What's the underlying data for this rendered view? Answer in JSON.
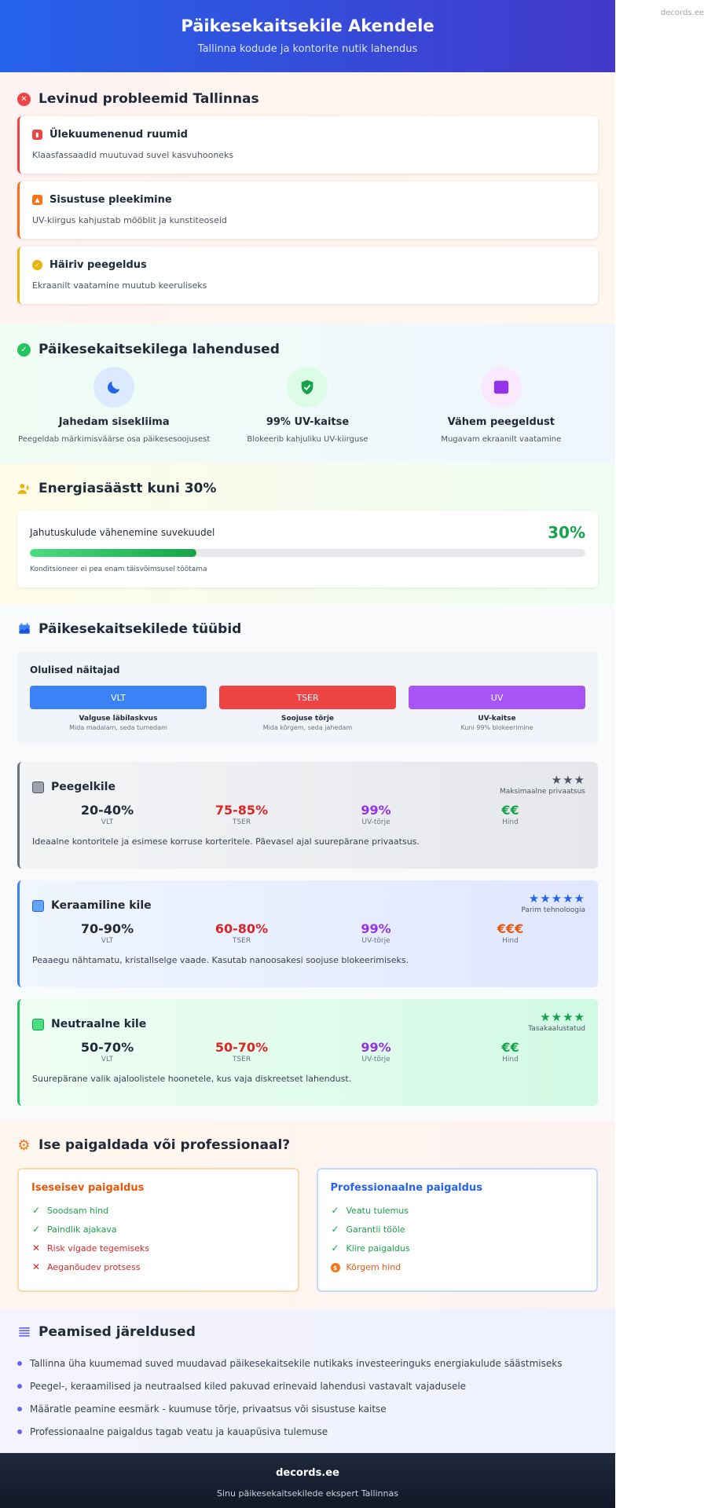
{
  "watermark": "decords.ee",
  "hero": {
    "title": "Päikesekaitsekile Akendele",
    "subtitle": "Tallinna kodude ja kontorite nutik lahendus"
  },
  "problems": {
    "title": "Levinud probleemid Tallinnas",
    "items": [
      {
        "title": "Ülekuumenenud ruumid",
        "desc": "Klaasfassaadid muutuvad suvel kasvuhooneks",
        "color": "#ef4444",
        "icon": "building-icon"
      },
      {
        "title": "Sisustuse pleekimine",
        "desc": "UV-kiirgus kahjustab mööblit ja kunstiteoseid",
        "color": "#f97316",
        "icon": "image-icon"
      },
      {
        "title": "Häiriv peegeldus",
        "desc": "Ekraanilt vaatamine muutub keeruliseks",
        "color": "#eab308",
        "icon": "glare-icon"
      }
    ]
  },
  "solutions": {
    "title": "Päikesekaitsekilega lahendused",
    "items": [
      {
        "title": "Jahedam sisekliima",
        "desc": "Peegeldab märkimisväärse osa päikesesoojusest",
        "icon": "moon-icon"
      },
      {
        "title": "99% UV-kaitse",
        "desc": "Blokeerib kahjuliku UV-kiirguse",
        "icon": "shield-check-icon"
      },
      {
        "title": "Vähem peegeldust",
        "desc": "Mugavam ekraanilt vaatamine",
        "icon": "screen-icon"
      }
    ]
  },
  "energy": {
    "title": "Energiasäästt kuni 30%",
    "label": "Jahutuskulude vähenemine suvekuudel",
    "value": "30%",
    "progress": 0.3,
    "note": "Konditsioneer ei pea enam täisvõimsusel töötama"
  },
  "types": {
    "title": "Päikesekaitsekilede tüübid",
    "metrics_title": "Olulised näitajad",
    "metrics": [
      {
        "label": "VLT",
        "name": "Valguse läbilaskvus",
        "desc": "Mida madalam, seda tumedam",
        "color": "#3b82f6"
      },
      {
        "label": "TSER",
        "name": "Soojuse tõrje",
        "desc": "Mida kõrgem, seda jahedam",
        "color": "#ef4444"
      },
      {
        "label": "UV",
        "name": "UV-kaitse",
        "desc": "Kuni 99% blokeerimine",
        "color": "#a855f7"
      }
    ],
    "films": [
      {
        "name": "Peegelkile",
        "stars": "★★★",
        "rating_label": "Maksimaalne privaatsus",
        "vlt": "20-40%",
        "tser": "75-85%",
        "uv": "99%",
        "price": "€€",
        "desc": "Ideaalne kontoritele ja esimese korruse korteritele. Päevasel ajal suurepärane privaatsus."
      },
      {
        "name": "Keraamiline kile",
        "stars": "★★★★★",
        "rating_label": "Parim tehnoloogia",
        "vlt": "70-90%",
        "tser": "60-80%",
        "uv": "99%",
        "price": "€€€",
        "desc": "Peaaegu nähtamatu, kristallselge vaade. Kasutab nanoosakesi soojuse blokeerimiseks."
      },
      {
        "name": "Neutraalne kile",
        "stars": "★★★★",
        "rating_label": "Tasakaalustatud",
        "vlt": "50-70%",
        "tser": "50-70%",
        "uv": "99%",
        "price": "€€",
        "desc": "Suurepärane valik ajaloolistele hoonetele, kus vaja diskreetset lahendust."
      }
    ],
    "stat_labels": {
      "vlt": "VLT",
      "tser": "TSER",
      "uv": "UV-tõrje",
      "price": "Hind"
    }
  },
  "install": {
    "title": "Ise paigaldada või professionaal?",
    "diy": {
      "title": "Iseseisev paigaldus",
      "items": [
        {
          "text": "Soodsam hind",
          "type": "pro"
        },
        {
          "text": "Paindlik ajakava",
          "type": "pro"
        },
        {
          "text": "Risk vigade tegemiseks",
          "type": "con"
        },
        {
          "text": "Aeganõudev protsess",
          "type": "con"
        }
      ]
    },
    "pro": {
      "title": "Professionaalne paigaldus",
      "items": [
        {
          "text": "Veatu tulemus",
          "type": "pro"
        },
        {
          "text": "Garantii tööle",
          "type": "pro"
        },
        {
          "text": "Kiire paigaldus",
          "type": "pro"
        },
        {
          "text": "Kõrgem hind",
          "type": "cost"
        }
      ]
    }
  },
  "conclusions": {
    "title": "Peamised järeldused",
    "items": [
      "Tallinna üha kuumemad suved muudavad päikesekaitsekile nutikaks investeeringuks energiakulude säästmiseks",
      "Peegel-, keraamilised ja neutraalsed kiled pakuvad erinevaid lahendusi vastavalt vajadusele",
      "Määratle peamine eesmärk - kuumuse tõrje, privaatsus või sisustuse kaitse",
      "Professionaalne paigaldus tagab veatu ja kauapüsiva tulemuse"
    ]
  },
  "footer": {
    "brand": "decords.ee",
    "tagline": "Sinu päikesekaitsekilede ekspert Tallinnas"
  }
}
